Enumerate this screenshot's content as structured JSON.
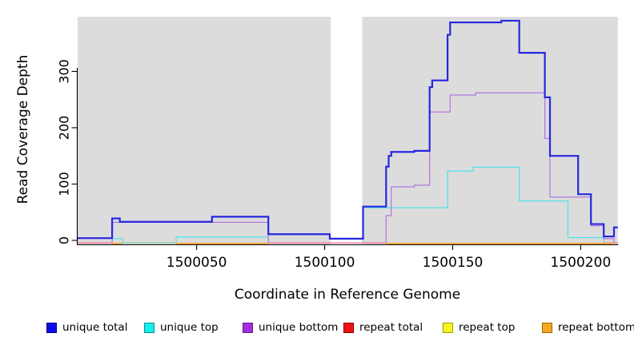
{
  "chart_data": {
    "type": "line",
    "title": "",
    "xlabel": "Coordinate in Reference Genome",
    "ylabel": "Read Coverage Depth",
    "x_ticks": [
      1500050,
      1500100,
      1500150,
      1500200
    ],
    "y_ticks": [
      0,
      100,
      200,
      300
    ],
    "xlim": [
      1500003.5,
      1500214.5
    ],
    "ylim": [
      0,
      397
    ],
    "grid": false,
    "legend_position": "bottom",
    "shaded_panels": [
      [
        1500003.5,
        1500102.4
      ],
      [
        1500114.7,
        1500214.5
      ]
    ],
    "colors": {
      "panel_shading": "#dcdcdc",
      "axis": "#000000",
      "unique_total": "#2727e0",
      "unique_top": "#4fe3e8",
      "unique_bottom": "#b277dd",
      "repeat_total": "#ee1111",
      "repeat_top": "#f5f520",
      "repeat_bottom": "#ff9e26"
    },
    "series": [
      {
        "name": "unique total",
        "color": "#2727e0",
        "step": [
          [
            1500003.5,
            4
          ],
          [
            1500017,
            39
          ],
          [
            1500020,
            33
          ],
          [
            1500056,
            42
          ],
          [
            1500078,
            11
          ],
          [
            1500102,
            3
          ],
          [
            1500115,
            60
          ],
          [
            1500124,
            131
          ],
          [
            1500125,
            150
          ],
          [
            1500126,
            157
          ],
          [
            1500135,
            159
          ],
          [
            1500141,
            272
          ],
          [
            1500142,
            284
          ],
          [
            1500148,
            365
          ],
          [
            1500149,
            387
          ],
          [
            1500169,
            390
          ],
          [
            1500176,
            333
          ],
          [
            1500186,
            254
          ],
          [
            1500188,
            150
          ],
          [
            1500199,
            82
          ],
          [
            1500204,
            29
          ],
          [
            1500209,
            7
          ],
          [
            1500213,
            23
          ]
        ]
      },
      {
        "name": "unique top",
        "color": "#4fe3e8",
        "step": [
          [
            1500003.5,
            0
          ],
          [
            1500017,
            3
          ],
          [
            1500021,
            0
          ],
          [
            1500042,
            6
          ],
          [
            1500078,
            0
          ],
          [
            1500115,
            58
          ],
          [
            1500148,
            123
          ],
          [
            1500158,
            130
          ],
          [
            1500176,
            70
          ],
          [
            1500195,
            5
          ],
          [
            1500209,
            0
          ]
        ]
      },
      {
        "name": "unique bottom",
        "color": "#b277dd",
        "step": [
          [
            1500003.5,
            0
          ],
          [
            1500017,
            32
          ],
          [
            1500078,
            0
          ],
          [
            1500124,
            44
          ],
          [
            1500126,
            95
          ],
          [
            1500135,
            98
          ],
          [
            1500141,
            228
          ],
          [
            1500149,
            258
          ],
          [
            1500159,
            262
          ],
          [
            1500186,
            181
          ],
          [
            1500188,
            77
          ],
          [
            1500204,
            26
          ],
          [
            1500209,
            3
          ],
          [
            1500213,
            0
          ]
        ]
      },
      {
        "name": "repeat total",
        "color": "#ee1111",
        "step": [
          [
            1500003.5,
            0
          ]
        ]
      },
      {
        "name": "repeat top",
        "color": "#f5f520",
        "step": [
          [
            1500003.5,
            0
          ]
        ]
      },
      {
        "name": "repeat bottom",
        "color": "#ff9e26",
        "step": [
          [
            1500003.5,
            0
          ]
        ]
      }
    ],
    "baseline_segments": [
      {
        "lane": "green",
        "color": "#93cf9b",
        "from": 1500021,
        "to": 1500042
      },
      {
        "lane": "pink",
        "color": "#ee7d95",
        "from": 1500003.5,
        "to": 1500017
      },
      {
        "lane": "pink",
        "color": "#ee7d95",
        "from": 1500078,
        "to": 1500124
      },
      {
        "lane": "pink",
        "color": "#ee7d95",
        "from": 1500209,
        "to": 1500214.5
      },
      {
        "lane": "orange",
        "color": "#ff9e26",
        "from": 1500017,
        "to": 1500021
      },
      {
        "lane": "orange",
        "color": "#ff9e26",
        "from": 1500042,
        "to": 1500078
      },
      {
        "lane": "orange",
        "color": "#ff9e26",
        "from": 1500124,
        "to": 1500212.8
      }
    ],
    "legend": [
      {
        "label": "unique total",
        "swatch": "#0b0bee",
        "border": "#00008f"
      },
      {
        "label": "unique top",
        "swatch": "#17efef",
        "border": "#0b8f8f"
      },
      {
        "label": "unique bottom",
        "swatch": "#a22de0",
        "border": "#641b8f"
      },
      {
        "label": "repeat total",
        "swatch": "#ee1111",
        "border": "#8f0000"
      },
      {
        "label": "repeat top",
        "swatch": "#f5f520",
        "border": "#9b9b00"
      },
      {
        "label": "repeat bottom",
        "swatch": "#f5a623",
        "border": "#9b6a00"
      }
    ]
  }
}
